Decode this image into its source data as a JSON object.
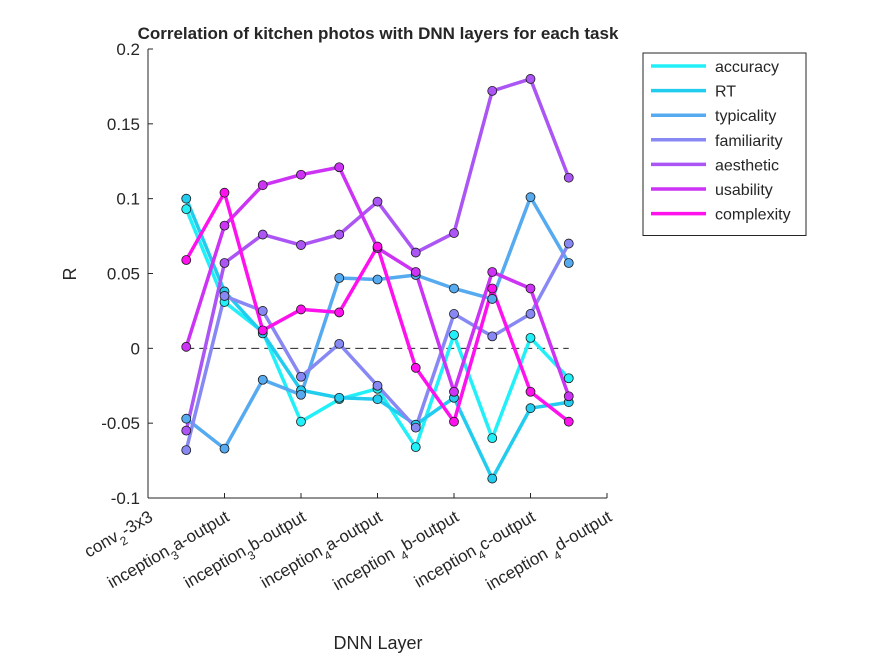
{
  "chart_data": {
    "type": "line",
    "title": "Correlation of kitchen photos with DNN layers for each task",
    "x_label": "DNN Layer",
    "y_label": "R",
    "x": [
      1,
      2,
      3,
      4,
      5,
      6,
      7,
      8,
      9,
      10,
      11
    ],
    "xlim": [
      0,
      12
    ],
    "xticks": [
      {
        "value": 0,
        "label": "conv2-3x3"
      },
      {
        "value": 2,
        "label": "inception3a-output"
      },
      {
        "value": 4,
        "label": "inception3b-output"
      },
      {
        "value": 6,
        "label": "inception4a-output"
      },
      {
        "value": 8,
        "label": "inception 4b-output"
      },
      {
        "value": 10,
        "label": "inception4c-output"
      },
      {
        "value": 12,
        "label": "inception 4d-output"
      }
    ],
    "ylim": [
      -0.1,
      0.2
    ],
    "yticks": [
      -0.1,
      -0.05,
      0,
      0.05,
      0.1,
      0.15,
      0.2
    ],
    "legend": "northeast outside",
    "series": [
      {
        "name": "accuracy",
        "color": "#22f0f8",
        "values": [
          0.093,
          0.031,
          0.011,
          -0.049,
          -0.034,
          -0.027,
          -0.066,
          0.009,
          -0.06,
          0.007,
          -0.02
        ]
      },
      {
        "name": "RT",
        "color": "#22ccee",
        "values": [
          0.1,
          0.038,
          0.01,
          -0.028,
          -0.033,
          -0.034,
          -0.051,
          -0.033,
          -0.087,
          -0.04,
          -0.036
        ]
      },
      {
        "name": "typicality",
        "color": "#55aaf0",
        "values": [
          -0.047,
          -0.067,
          -0.021,
          -0.031,
          0.047,
          0.046,
          0.049,
          0.04,
          0.033,
          0.101,
          0.057
        ]
      },
      {
        "name": "familiarity",
        "color": "#8888f4",
        "values": [
          -0.068,
          0.035,
          0.025,
          -0.019,
          0.003,
          -0.025,
          -0.053,
          0.023,
          0.008,
          0.023,
          0.07
        ]
      },
      {
        "name": "aesthetic",
        "color": "#aa55f4",
        "values": [
          -0.055,
          0.057,
          0.076,
          0.069,
          0.076,
          0.098,
          0.064,
          0.077,
          0.172,
          0.18,
          0.114
        ]
      },
      {
        "name": "usability",
        "color": "#cc33f4",
        "values": [
          0.001,
          0.082,
          0.109,
          0.116,
          0.121,
          0.067,
          0.051,
          -0.029,
          0.051,
          0.04,
          -0.032
        ]
      },
      {
        "name": "complexity",
        "color": "#ff11ee",
        "values": [
          0.059,
          0.104,
          0.012,
          0.026,
          0.024,
          0.068,
          -0.013,
          -0.049,
          0.04,
          -0.029,
          -0.049
        ]
      }
    ]
  }
}
